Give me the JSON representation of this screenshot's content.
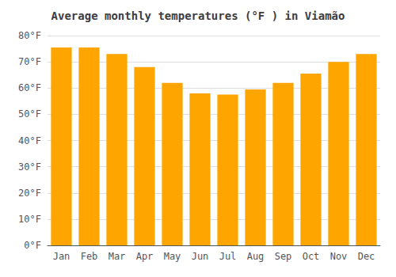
{
  "chart_data": {
    "type": "bar",
    "title": "Average monthly temperatures (°F ) in Viamão",
    "categories": [
      "Jan",
      "Feb",
      "Mar",
      "Apr",
      "May",
      "Jun",
      "Jul",
      "Aug",
      "Sep",
      "Oct",
      "Nov",
      "Dec"
    ],
    "values": [
      75.5,
      75.5,
      73,
      68,
      62,
      58,
      57.5,
      59.5,
      62,
      65.5,
      70,
      73
    ],
    "color": "#FFA500",
    "ylim": [
      0,
      80
    ],
    "yticks": [
      {
        "value": 0,
        "label": "0°F"
      },
      {
        "value": 10,
        "label": "10°F"
      },
      {
        "value": 20,
        "label": "20°F"
      },
      {
        "value": 30,
        "label": "30°F"
      },
      {
        "value": 40,
        "label": "40°F"
      },
      {
        "value": 50,
        "label": "50°F"
      },
      {
        "value": 60,
        "label": "60°F"
      },
      {
        "value": 70,
        "label": "70°F"
      },
      {
        "value": 80,
        "label": "80°F"
      }
    ],
    "grid": true
  }
}
